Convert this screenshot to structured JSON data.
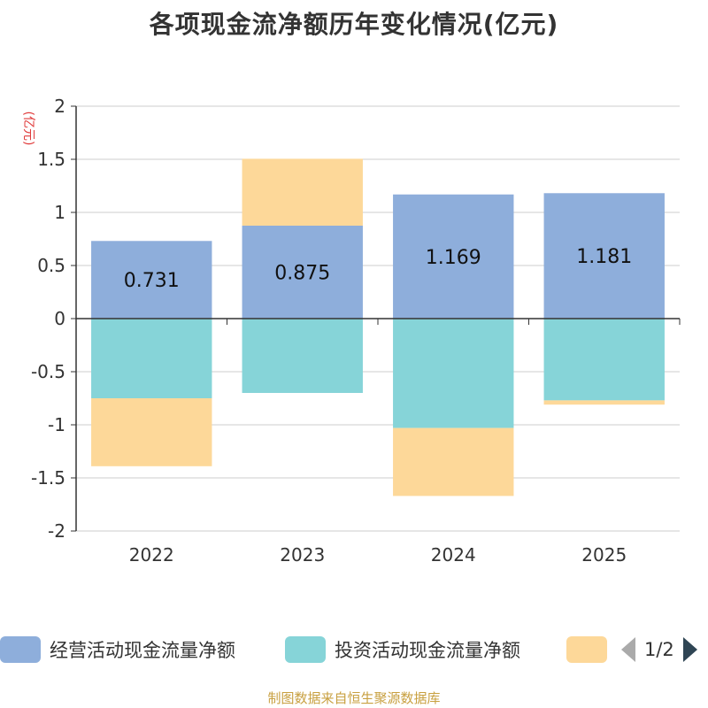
{
  "chart_data": {
    "type": "bar",
    "stacked": true,
    "title": "各项现金流净额历年变化情况(亿元)",
    "ylabel": "(亿元)",
    "xlabel": "",
    "categories": [
      "2022",
      "2023",
      "2024",
      "2025"
    ],
    "ylim": [
      -2,
      2
    ],
    "yticks": [
      2,
      1.5,
      1,
      0.5,
      0,
      -0.5,
      -1,
      -1.5,
      -2
    ],
    "ytick_labels": [
      "2",
      "1.5",
      "1",
      "0.5",
      "0",
      "-0.5",
      "-1",
      "-1.5",
      "-2"
    ],
    "grid": true,
    "series": [
      {
        "name": "经营活动现金流量净额",
        "color": "#8eaedb",
        "values": [
          0.731,
          0.875,
          1.169,
          1.181
        ],
        "labels": [
          "0.731",
          "0.875",
          "1.169",
          "1.181"
        ]
      },
      {
        "name": "投资活动现金流量净额",
        "color": "#86d4d8",
        "values": [
          -0.75,
          -0.7,
          -1.03,
          -0.77
        ]
      },
      {
        "name": "",
        "color": "#fdd899",
        "values": [
          -0.64,
          0.63,
          -0.64,
          -0.04
        ]
      }
    ],
    "legend_position": "bottom",
    "legend_page": "1/2"
  },
  "colors": {
    "axis": "#333333",
    "grid": "#cccccc",
    "ylabel": "#e03c3c",
    "source": "#c8a040"
  },
  "source_note": "制图数据来自恒生聚源数据库"
}
